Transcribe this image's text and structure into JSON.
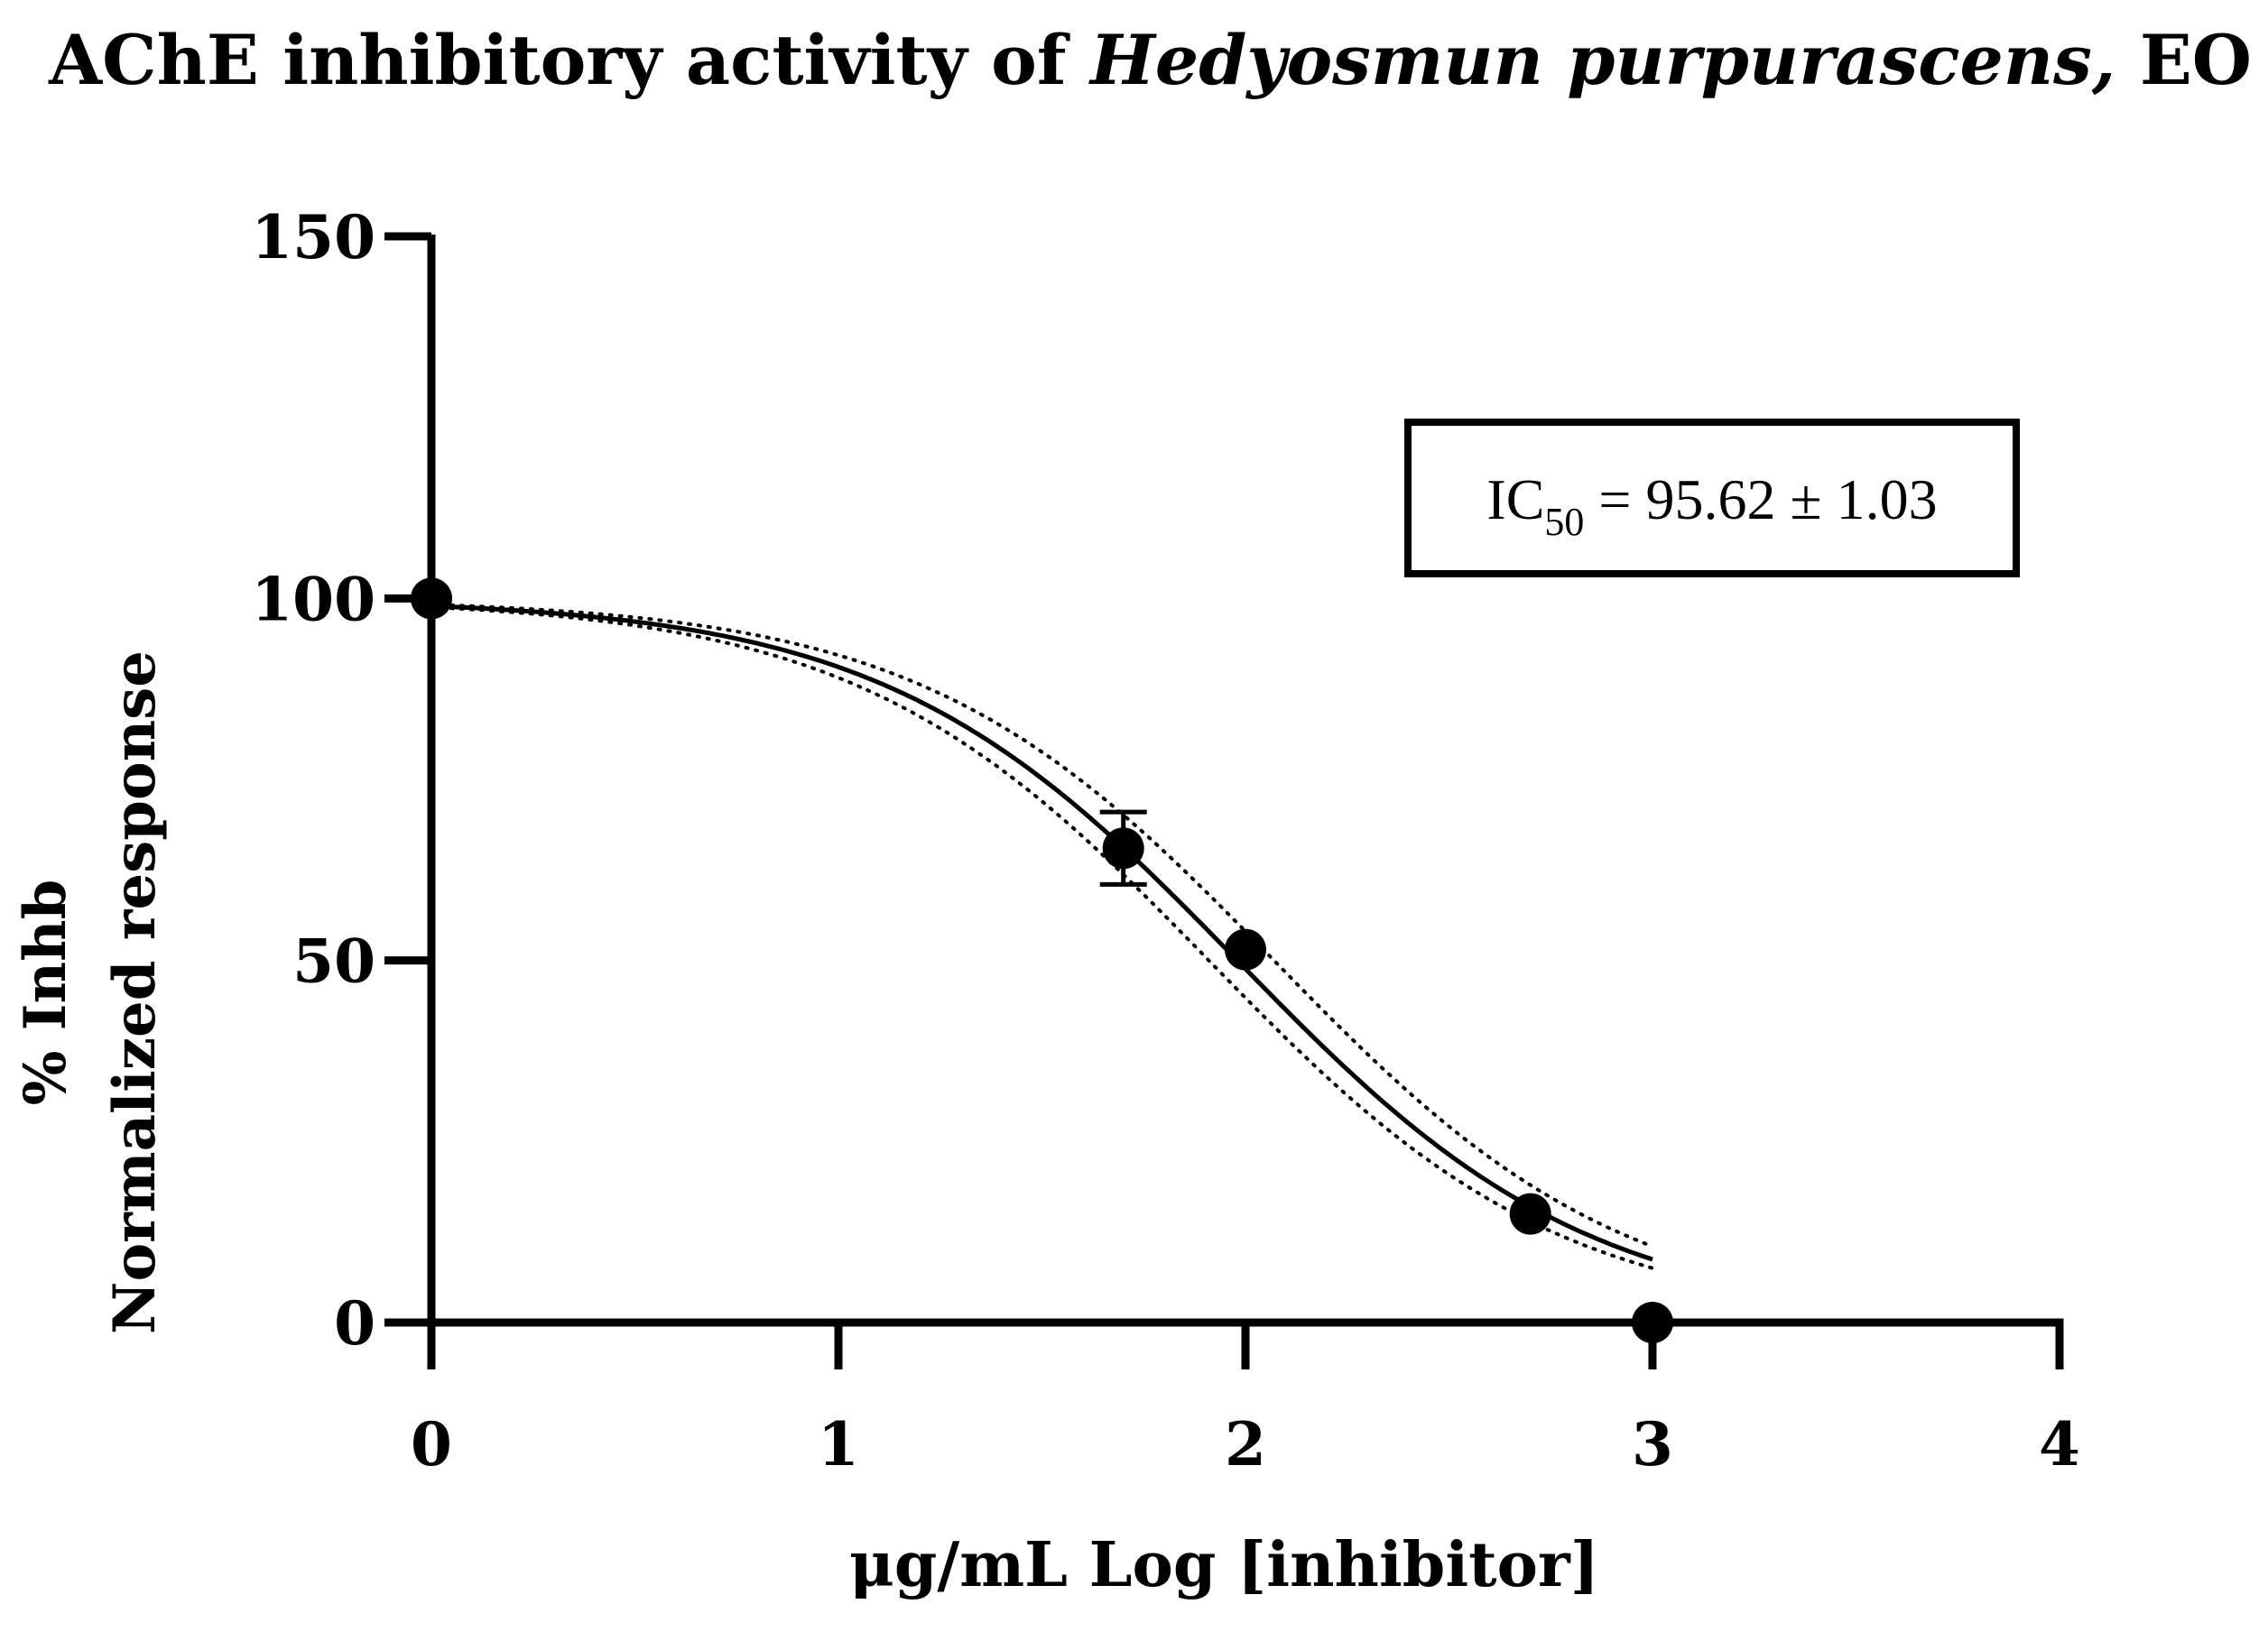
{
  "chart_data": {
    "type": "scatter",
    "title": "AChE inhibitory activity of Hedyosmun purpurascens, EO",
    "title_parts": {
      "prefix": "AChE inhibitory activity of ",
      "italic": "Hedyosmun purpurascens,",
      "suffix": " EO"
    },
    "xlabel": "μg/mL Log [inhibitor]",
    "ylabel_lines": [
      "% Inhb",
      "Normalized response"
    ],
    "xlim": [
      0,
      4
    ],
    "ylim": [
      0,
      150
    ],
    "xticks": [
      0,
      1,
      2,
      3,
      4
    ],
    "yticks": [
      0,
      50,
      100,
      150
    ],
    "grid": false,
    "x": [
      0,
      1.7,
      2.0,
      2.7,
      3.0
    ],
    "y": [
      100,
      65.5,
      51.5,
      15,
      0
    ],
    "y_error": [
      0,
      5,
      0,
      0,
      0
    ],
    "fit_curve": {
      "model": "log(inhibitor) vs normalized response",
      "logIC50": 1.98,
      "hill_slope": -1.0,
      "x_range": [
        0,
        3
      ],
      "confidence_band": true
    },
    "annotation": {
      "prefix": "IC",
      "subscript": "50",
      "suffix": " = 95.62 ± 1.03"
    },
    "colors": {
      "marker": "#000000",
      "line": "#000000",
      "background": "#ffffff"
    }
  }
}
